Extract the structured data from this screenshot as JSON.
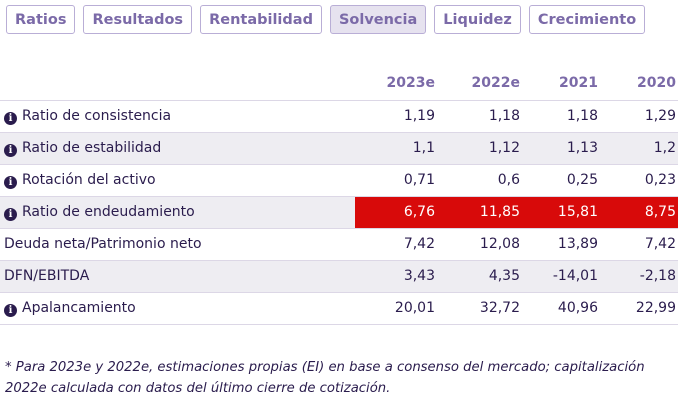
{
  "tabs": [
    "Ratios",
    "Resultados",
    "Rentabilidad",
    "Solvencia",
    "Liquidez",
    "Crecimiento"
  ],
  "active_tab": "Solvencia",
  "table": {
    "columns": [
      "2023e",
      "2022e",
      "2021",
      "2020"
    ],
    "rows": [
      {
        "label": "Ratio de consistencia",
        "info": true,
        "values": [
          "1,19",
          "1,18",
          "1,18",
          "1,29"
        ]
      },
      {
        "label": "Ratio de estabilidad",
        "info": true,
        "values": [
          "1,1",
          "1,12",
          "1,13",
          "1,2"
        ]
      },
      {
        "label": "Rotación del activo",
        "info": true,
        "values": [
          "0,71",
          "0,6",
          "0,25",
          "0,23"
        ]
      },
      {
        "label": "Ratio de endeudamiento",
        "info": true,
        "highlight": true,
        "values": [
          "6,76",
          "11,85",
          "15,81",
          "8,75"
        ]
      },
      {
        "label": "Deuda neta/Patrimonio neto",
        "info": false,
        "values": [
          "7,42",
          "12,08",
          "13,89",
          "7,42"
        ]
      },
      {
        "label": "DFN/EBITDA",
        "info": false,
        "values": [
          "3,43",
          "4,35",
          "-14,01",
          "-2,18"
        ]
      },
      {
        "label": "Apalancamiento",
        "info": true,
        "values": [
          "20,01",
          "32,72",
          "40,96",
          "22,99"
        ]
      }
    ]
  },
  "footnote": "* Para 2023e y 2022e, estimaciones propias (EI) en base a consenso del mercado; capitalización 2022e calculada con datos del último cierre de cotización.",
  "colors": {
    "accent": "#7b6aa8",
    "highlight": "#d80a0a",
    "row_shade": "#eeedf2",
    "text": "#2a1c4d"
  }
}
